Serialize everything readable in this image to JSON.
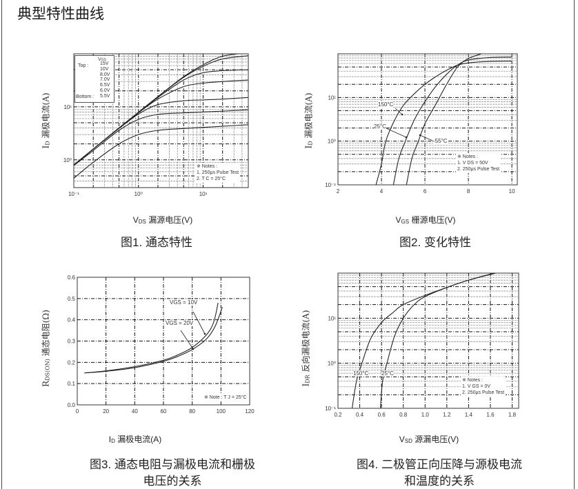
{
  "page_title": "典型特性曲线",
  "figures": [
    {
      "caption": [
        "图1. 通态特性"
      ],
      "ylabel": {
        "sym": "I",
        "sub": "D",
        "text": " 漏极电流(A)"
      },
      "xlabel": {
        "sym": "V",
        "sub": "DS",
        "text": " 漏源电压(V)"
      },
      "legend": {
        "header_sym": "V",
        "header_sub": "GS",
        "top_label": "Top :",
        "bottom_label": "Bottom :",
        "values": [
          "15V",
          "10V",
          "8.0V",
          "7.0V",
          "6.5V",
          "6.0V",
          "5.5V"
        ]
      },
      "notes": [
        "※ Notes :",
        "1. 250μs Pulse Test",
        "2. T C = 25°C"
      ]
    },
    {
      "caption": [
        "图2. 变化特性"
      ],
      "ylabel": {
        "sym": "I",
        "sub": "D",
        "text": " 漏极电流(A)"
      },
      "xlabel": {
        "sym": "V",
        "sub": "GS",
        "text": " 栅源电压(V)"
      },
      "notes": [
        "※ Notes :",
        "1. V DS = 50V",
        "2. 250μs Pulse Test"
      ]
    },
    {
      "caption": [
        "图3. 通态电阻与漏极电流和栅极",
        "电压的关系"
      ],
      "ylabel": {
        "sym": "R",
        "sub": "DS(ON)",
        "text": " 通态电阻(Ω)"
      },
      "xlabel": {
        "sym": "I",
        "sub": "D",
        "text": " 漏极电流(A)"
      },
      "notes": [
        "※ Note : T J = 25°C"
      ]
    },
    {
      "caption": [
        "图4. 二极管正向压降与源极电流",
        "和温度的关系"
      ],
      "ylabel": {
        "sym": "I",
        "sub": "DR",
        "text": " 反向漏极电流(A)"
      },
      "xlabel": {
        "sym": "V",
        "sub": "SD",
        "text": " 源漏电压(V)"
      },
      "notes": [
        "※ Notes :",
        "1. V GS = 0V",
        "2. 250μs Pulse Test"
      ]
    }
  ],
  "chart_data": [
    {
      "type": "line",
      "title": "图1. 通态特性",
      "xlabel": "VDS 漏源电压(V)",
      "ylabel": "ID 漏极电流(A)",
      "xscale": "log",
      "yscale": "log",
      "xlim": [
        0.1,
        50
      ],
      "ylim": [
        0.3,
        100
      ],
      "x_ticks": [
        0.1,
        1,
        10
      ],
      "x_tick_labels": [
        "10⁻¹",
        "10⁰",
        "10¹"
      ],
      "y_ticks": [
        1,
        10
      ],
      "y_tick_labels": [
        "10⁰",
        "10¹"
      ],
      "grid": true,
      "x": [
        0.1,
        0.2,
        0.5,
        1,
        2,
        5,
        10,
        20,
        50
      ],
      "series": [
        {
          "name": "15V",
          "values": [
            0.8,
            1.6,
            4,
            7.9,
            15.6,
            37,
            62,
            90,
            105
          ]
        },
        {
          "name": "10V",
          "values": [
            0.8,
            1.6,
            4,
            7.9,
            15.5,
            36,
            58,
            80,
            92
          ]
        },
        {
          "name": "8.0V",
          "values": [
            0.8,
            1.6,
            4,
            7.8,
            15,
            32,
            44,
            48,
            50
          ]
        },
        {
          "name": "7.0V",
          "values": [
            0.8,
            1.6,
            4,
            7.7,
            14,
            24,
            28,
            30,
            32
          ]
        },
        {
          "name": "6.5V",
          "values": [
            0.8,
            1.6,
            3.9,
            7.3,
            11,
            13,
            13.5,
            14,
            15
          ]
        },
        {
          "name": "6.0V",
          "values": [
            0.78,
            1.5,
            3.6,
            5.8,
            7.2,
            7.7,
            8,
            8.3,
            8.8
          ]
        },
        {
          "name": "5.5V",
          "values": [
            0.45,
            0.9,
            2,
            3,
            3.6,
            3.9,
            4.1,
            4.3,
            4.6
          ]
        }
      ]
    },
    {
      "type": "line",
      "title": "图2. 变化特性",
      "xlabel": "VGS 栅源电压(V)",
      "ylabel": "ID 漏极电流(A)",
      "xscale": "linear",
      "yscale": "log",
      "xlim": [
        2,
        10.25
      ],
      "ylim": [
        0.1,
        100
      ],
      "x_ticks": [
        2,
        4,
        6,
        8,
        10
      ],
      "x_tick_labels": [
        "2",
        "4",
        "6",
        "8",
        "10"
      ],
      "y_ticks": [
        0.1,
        1,
        10
      ],
      "y_tick_labels": [
        "10⁻¹",
        "10⁰",
        "10¹"
      ],
      "grid": true,
      "series": [
        {
          "name": "150°C",
          "points": [
            [
              3.75,
              0.1
            ],
            [
              4,
              0.3
            ],
            [
              4.2,
              1
            ],
            [
              4.6,
              3
            ],
            [
              5,
              6.5
            ],
            [
              5.5,
              12
            ],
            [
              6,
              20
            ],
            [
              6.5,
              30
            ],
            [
              7,
              42
            ],
            [
              7.5,
              55
            ],
            [
              8,
              62
            ],
            [
              9,
              67
            ],
            [
              10,
              68
            ]
          ]
        },
        {
          "name": "25°C",
          "points": [
            [
              4.55,
              0.1
            ],
            [
              4.8,
              0.4
            ],
            [
              5.1,
              1
            ],
            [
              5.5,
              3
            ],
            [
              6,
              8
            ],
            [
              6.5,
              18
            ],
            [
              7,
              34
            ],
            [
              7.5,
              55
            ],
            [
              8,
              72
            ],
            [
              9,
              82
            ],
            [
              10,
              84
            ]
          ]
        },
        {
          "name": "-55°C",
          "points": [
            [
              5.15,
              0.1
            ],
            [
              5.4,
              0.4
            ],
            [
              5.7,
              1
            ],
            [
              6,
              2.5
            ],
            [
              6.5,
              7
            ],
            [
              7,
              20
            ],
            [
              7.5,
              50
            ],
            [
              8,
              78
            ],
            [
              8.6,
              100
            ]
          ]
        }
      ]
    },
    {
      "type": "line",
      "title": "图3. 通态电阻与漏极电流和栅极电压的关系",
      "xlabel": "ID 漏极电流(A)",
      "ylabel": "RDS(ON) 通态电阻(Ω)",
      "xscale": "linear",
      "yscale": "linear",
      "xlim": [
        0,
        120
      ],
      "ylim": [
        0,
        0.6
      ],
      "x_ticks": [
        0,
        20,
        40,
        60,
        80,
        100,
        120
      ],
      "x_tick_labels": [
        "0",
        "20",
        "40",
        "60",
        "80",
        "100",
        "120"
      ],
      "y_ticks": [
        0,
        0.1,
        0.2,
        0.3,
        0.4,
        0.5,
        0.6
      ],
      "y_tick_labels": [
        "0.0",
        "0.1",
        "0.2",
        "0.3",
        "0.4",
        "0.5",
        "0.6"
      ],
      "grid": true,
      "series": [
        {
          "name": "VGS = 10V",
          "points": [
            [
              5,
              0.15
            ],
            [
              20,
              0.16
            ],
            [
              40,
              0.18
            ],
            [
              60,
              0.21
            ],
            [
              70,
              0.235
            ],
            [
              80,
              0.27
            ],
            [
              90,
              0.33
            ],
            [
              95,
              0.39
            ],
            [
              98,
              0.48
            ]
          ]
        },
        {
          "name": "VGS = 20V",
          "points": [
            [
              5,
              0.15
            ],
            [
              20,
              0.158
            ],
            [
              40,
              0.175
            ],
            [
              60,
              0.205
            ],
            [
              70,
              0.228
            ],
            [
              80,
              0.26
            ],
            [
              90,
              0.31
            ],
            [
              96,
              0.37
            ],
            [
              101,
              0.46
            ]
          ]
        }
      ]
    },
    {
      "type": "line",
      "title": "图4. 二极管正向压降与源极电流和温度的关系",
      "xlabel": "VSD 源漏电压(V)",
      "ylabel": "IDR 反向漏极电流(A)",
      "xscale": "linear",
      "yscale": "log",
      "xlim": [
        0.2,
        1.86
      ],
      "ylim": [
        0.1,
        100
      ],
      "x_ticks": [
        0.2,
        0.4,
        0.6,
        0.8,
        1.0,
        1.2,
        1.4,
        1.6,
        1.8
      ],
      "x_tick_labels": [
        "0.2",
        "0.4",
        "0.6",
        "0.8",
        "1.0",
        "1.2",
        "1.4",
        "1.6",
        "1.8"
      ],
      "y_ticks": [
        0.1,
        1,
        10
      ],
      "y_tick_labels": [
        "10⁻¹",
        "10⁰",
        "10¹"
      ],
      "grid": true,
      "series": [
        {
          "name": "150°C",
          "points": [
            [
              0.33,
              0.1
            ],
            [
              0.37,
              0.4
            ],
            [
              0.42,
              1
            ],
            [
              0.5,
              3.5
            ],
            [
              0.6,
              8
            ],
            [
              0.7,
              13
            ],
            [
              0.8,
              20
            ],
            [
              1.0,
              32
            ],
            [
              1.2,
              48
            ],
            [
              1.4,
              70
            ],
            [
              1.65,
              100
            ]
          ]
        },
        {
          "name": "25°C",
          "points": [
            [
              0.59,
              0.1
            ],
            [
              0.61,
              0.4
            ],
            [
              0.65,
              1
            ],
            [
              0.72,
              4
            ],
            [
              0.8,
              10
            ],
            [
              0.9,
              20
            ],
            [
              1.0,
              30
            ],
            [
              1.2,
              48
            ],
            [
              1.4,
              70
            ],
            [
              1.6,
              95
            ],
            [
              1.63,
              100
            ]
          ]
        }
      ]
    }
  ]
}
